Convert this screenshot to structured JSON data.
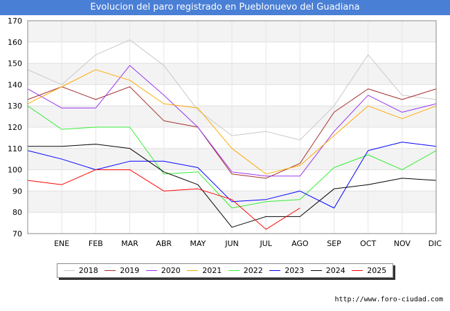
{
  "title": "Evolucion del paro registrado en Pueblonuevo del Guadiana",
  "source": "http://www.foro-ciudad.com",
  "chart_data": {
    "type": "line",
    "title": "Evolucion del paro registrado en Pueblonuevo del Guadiana",
    "categories": [
      "",
      "ENE",
      "FEB",
      "MAR",
      "ABR",
      "MAY",
      "JUN",
      "JUL",
      "AGO",
      "SEP",
      "OCT",
      "NOV",
      "DIC"
    ],
    "ylim": [
      70,
      170
    ],
    "yticks": [
      70,
      80,
      90,
      100,
      110,
      120,
      130,
      140,
      150,
      160,
      170
    ],
    "series": [
      {
        "name": "2018",
        "color": "#c8c8c8",
        "values": [
          147,
          140,
          154,
          161,
          149,
          128,
          116,
          118,
          114,
          130,
          154,
          135,
          133
        ]
      },
      {
        "name": "2019",
        "color": "#a52a2a",
        "values": [
          133,
          139,
          133,
          139,
          123,
          120,
          98,
          96,
          103,
          127,
          138,
          133,
          138
        ]
      },
      {
        "name": "2020",
        "color": "#9933ee",
        "values": [
          138,
          129,
          129,
          149,
          135,
          120,
          99,
          97,
          97,
          118,
          135,
          127,
          131
        ]
      },
      {
        "name": "2021",
        "color": "#ffaa00",
        "values": [
          131,
          139,
          147,
          142,
          131,
          129,
          110,
          98,
          102,
          116,
          130,
          124,
          130
        ]
      },
      {
        "name": "2022",
        "color": "#33ee33",
        "values": [
          130,
          119,
          120,
          120,
          98,
          99,
          82,
          85,
          86,
          101,
          107,
          100,
          109
        ]
      },
      {
        "name": "2023",
        "color": "#0000ff",
        "values": [
          109,
          105,
          100,
          104,
          104,
          101,
          85,
          86,
          90,
          82,
          109,
          113,
          111
        ]
      },
      {
        "name": "2024",
        "color": "#000000",
        "values": [
          111,
          111,
          112,
          110,
          99,
          93,
          73,
          78,
          78,
          91,
          93,
          96,
          95
        ]
      },
      {
        "name": "2025",
        "color": "#ff0000",
        "values": [
          95,
          93,
          100,
          100,
          90,
          91,
          86,
          72,
          82,
          null,
          null,
          null,
          null
        ]
      }
    ]
  }
}
